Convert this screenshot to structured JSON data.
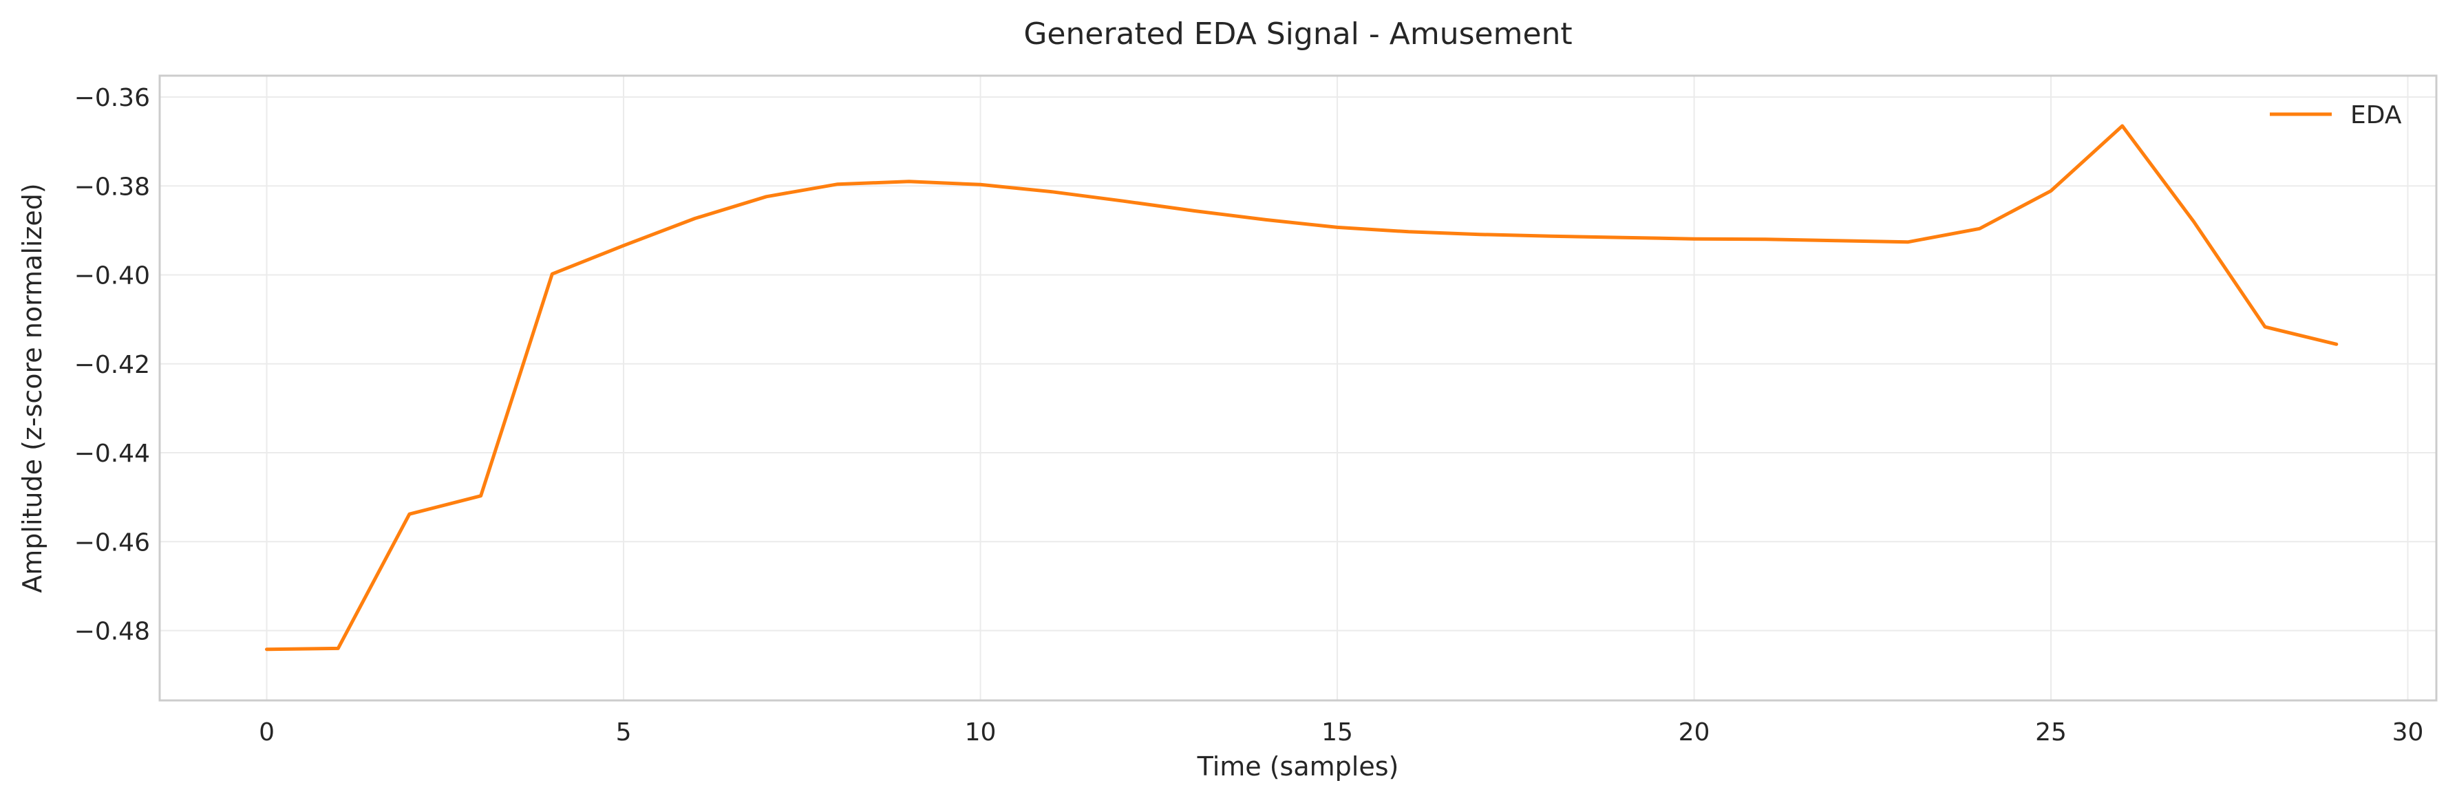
{
  "chart_data": {
    "type": "line",
    "title": "Generated EDA Signal - Amusement",
    "xlabel": "Time (samples)",
    "ylabel": "Amplitude (z-score normalized)",
    "xlim": [
      -1.5,
      30.4
    ],
    "ylim": [
      -0.4957,
      -0.3552
    ],
    "xticks": [
      0,
      5,
      10,
      15,
      20,
      25,
      30
    ],
    "yticks": [
      -0.36,
      -0.38,
      -0.4,
      -0.42,
      -0.44,
      -0.46,
      -0.48
    ],
    "xtick_labels": [
      "0",
      "5",
      "10",
      "15",
      "20",
      "25",
      "30"
    ],
    "ytick_labels": [
      "−0.36",
      "−0.38",
      "−0.40",
      "−0.42",
      "−0.44",
      "−0.46",
      "−0.48"
    ],
    "grid": true,
    "legend_position": "top-right",
    "series": [
      {
        "name": "EDA",
        "color": "#ff7f0e",
        "x": [
          0,
          1,
          2,
          3,
          4,
          5,
          6,
          7,
          8,
          9,
          10,
          11,
          12,
          13,
          14,
          15,
          16,
          17,
          18,
          19,
          20,
          21,
          22,
          23,
          24,
          25,
          26,
          27,
          28,
          29
        ],
        "values": [
          -0.4842,
          -0.484,
          -0.4538,
          -0.4497,
          -0.3998,
          -0.3934,
          -0.3873,
          -0.3824,
          -0.3796,
          -0.379,
          -0.3797,
          -0.3813,
          -0.3834,
          -0.3856,
          -0.3876,
          -0.3893,
          -0.3903,
          -0.3909,
          -0.3913,
          -0.3916,
          -0.3919,
          -0.392,
          -0.3923,
          -0.3926,
          -0.3896,
          -0.3811,
          -0.3665,
          -0.388,
          -0.4117,
          -0.4156
        ]
      }
    ]
  }
}
